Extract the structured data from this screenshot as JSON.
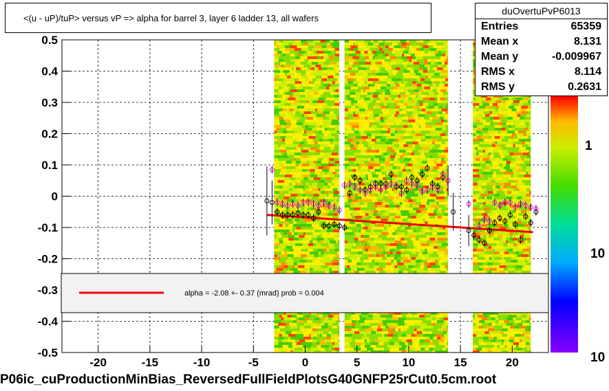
{
  "title": "<(u - uP)/tuP>  versus   vP => alpha for barrel 3, layer 6 ladder 13, all wafers",
  "stats": {
    "name": "duOvertuPvP6013",
    "rows": [
      {
        "label": "Entries",
        "value": "65359"
      },
      {
        "label": "Mean x",
        "value": "8.131"
      },
      {
        "label": "Mean y",
        "value": "-0.009967"
      },
      {
        "label": "RMS x",
        "value": "8.114"
      },
      {
        "label": "RMS y",
        "value": "0.2631"
      }
    ]
  },
  "fit_legend": {
    "text": "alpha =   -2.08 +-  0.37 (mrad) prob = 0.004",
    "line_color": "#ee0000"
  },
  "footer": "P06ic_cuProductionMinBias_ReversedFullFieldPlotsG40GNFP25rCut0.5cm.root",
  "chart_data": {
    "type": "scatter",
    "xlim": [
      -23.5,
      23.5
    ],
    "ylim": [
      -0.5,
      0.5
    ],
    "x_ticks": [
      -20,
      -15,
      -10,
      -5,
      0,
      5,
      10,
      15,
      20
    ],
    "y_ticks": [
      -0.5,
      -0.4,
      -0.3,
      -0.2,
      -0.1,
      0,
      0.1,
      0.2,
      0.3,
      0.4,
      0.5
    ],
    "x_tick_labels": [
      "-20",
      "-15",
      "-10",
      "-5",
      "0",
      "5",
      "10",
      "15",
      "20"
    ],
    "y_tick_labels": [
      "-0.5",
      "-0.4",
      "-0.3",
      "-0.2",
      "-0.1",
      "0",
      "0.1",
      "0.2",
      "0.3",
      "0.4",
      "0.5"
    ],
    "grid": true,
    "colorbar_tick_labels": [
      "1",
      "10"
    ],
    "heatmap_columns": [
      {
        "x_range": [
          -3.0,
          3.3
        ]
      },
      {
        "x_range": [
          3.8,
          13.8
        ]
      },
      {
        "x_range": [
          16.2,
          21.8
        ]
      }
    ],
    "fit_line": {
      "color": "#ee0000",
      "x": [
        -3.7,
        22.0
      ],
      "y": [
        -0.06,
        -0.115
      ]
    },
    "series": [
      {
        "marker": "circle",
        "color": "#000000",
        "points": [
          [
            -3.7,
            -0.015
          ],
          [
            -3.2,
            -0.02
          ],
          [
            -2.7,
            -0.05
          ],
          [
            -2.2,
            -0.06
          ],
          [
            -1.7,
            -0.06
          ],
          [
            -1.2,
            -0.06
          ],
          [
            -0.7,
            -0.055
          ],
          [
            -0.2,
            -0.06
          ],
          [
            0.3,
            -0.06
          ],
          [
            0.8,
            -0.07
          ],
          [
            1.3,
            -0.05
          ],
          [
            1.8,
            -0.095
          ],
          [
            2.3,
            -0.095
          ],
          [
            2.8,
            -0.09
          ],
          [
            3.3,
            -0.095
          ],
          [
            3.8,
            -0.1
          ],
          [
            4.3,
            0.01
          ],
          [
            4.8,
            0.06
          ],
          [
            5.3,
            0.05
          ],
          [
            5.8,
            0.02
          ],
          [
            6.3,
            0.03
          ],
          [
            6.8,
            0.04
          ],
          [
            7.3,
            0.04
          ],
          [
            7.8,
            0.04
          ],
          [
            8.3,
            0.07
          ],
          [
            8.8,
            0.03
          ],
          [
            9.3,
            0.03
          ],
          [
            9.8,
            0.02
          ],
          [
            10.3,
            0.06
          ],
          [
            10.8,
            0.05
          ],
          [
            11.3,
            0.07
          ],
          [
            11.8,
            0.09
          ],
          [
            12.3,
            0.04
          ],
          [
            12.8,
            0.03
          ],
          [
            13.3,
            0.06
          ],
          [
            13.8,
            0.05
          ],
          [
            14.3,
            -0.05
          ],
          [
            15.8,
            -0.11
          ],
          [
            16.3,
            -0.125
          ],
          [
            16.8,
            -0.14
          ],
          [
            17.3,
            -0.15
          ],
          [
            17.8,
            -0.11
          ],
          [
            18.3,
            -0.085
          ],
          [
            18.8,
            -0.07
          ],
          [
            19.3,
            -0.08
          ],
          [
            19.8,
            -0.06
          ],
          [
            20.3,
            -0.09
          ],
          [
            20.8,
            -0.14
          ],
          [
            21.3,
            -0.065
          ],
          [
            21.8,
            -0.085
          ],
          [
            22.3,
            -0.05
          ]
        ]
      },
      {
        "marker": "circle",
        "color": "#ff00ff",
        "points": [
          [
            -3.2,
            0.085
          ],
          [
            -2.7,
            -0.02
          ],
          [
            -2.2,
            -0.025
          ],
          [
            -1.7,
            -0.03
          ],
          [
            -1.2,
            -0.025
          ],
          [
            -0.7,
            -0.03
          ],
          [
            -0.2,
            -0.02
          ],
          [
            0.3,
            -0.02
          ],
          [
            0.8,
            -0.025
          ],
          [
            1.3,
            -0.03
          ],
          [
            1.8,
            -0.02
          ],
          [
            2.3,
            -0.03
          ],
          [
            2.8,
            -0.035
          ],
          [
            3.3,
            -0.045
          ],
          [
            3.8,
            0.035
          ],
          [
            4.3,
            0.04
          ],
          [
            4.8,
            0.03
          ],
          [
            5.3,
            0.02
          ],
          [
            5.8,
            0.01
          ],
          [
            6.3,
            0.02
          ],
          [
            6.8,
            0.03
          ],
          [
            7.3,
            0.02
          ],
          [
            7.8,
            0.03
          ],
          [
            8.3,
            0.04
          ],
          [
            8.8,
            0.035
          ],
          [
            9.3,
            0.01
          ],
          [
            9.8,
            0.05
          ],
          [
            10.3,
            0.04
          ],
          [
            10.8,
            0.035
          ],
          [
            11.3,
            0.015
          ],
          [
            11.8,
            0.02
          ],
          [
            12.3,
            0.03
          ],
          [
            12.8,
            0.02
          ],
          [
            13.3,
            0.07
          ],
          [
            13.8,
            0.05
          ],
          [
            15.8,
            -0.025
          ],
          [
            16.8,
            -0.095
          ],
          [
            17.3,
            -0.075
          ],
          [
            17.8,
            -0.08
          ],
          [
            18.3,
            -0.02
          ],
          [
            18.8,
            -0.03
          ],
          [
            19.3,
            -0.02
          ],
          [
            19.8,
            -0.02
          ],
          [
            20.3,
            -0.035
          ],
          [
            20.8,
            -0.025
          ],
          [
            21.3,
            -0.03
          ],
          [
            21.8,
            -0.035
          ],
          [
            22.3,
            -0.04
          ]
        ]
      }
    ]
  }
}
